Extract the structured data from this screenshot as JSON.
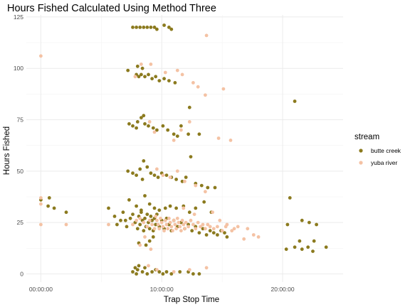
{
  "chart_data": {
    "type": "scatter",
    "title": "Hours Fished Calculated Using Method Three",
    "xlabel": "Trap Stop Time",
    "ylabel": "Hours Fished",
    "x_unit": "hours of day",
    "xlim": [
      -1.2,
      25
    ],
    "ylim": [
      -4,
      126
    ],
    "x_ticks": [
      {
        "value": 0,
        "label": "00:00:00"
      },
      {
        "value": 10,
        "label": "10:00:00"
      },
      {
        "value": 20,
        "label": "20:00:00"
      }
    ],
    "y_ticks": [
      {
        "value": 0,
        "label": "0"
      },
      {
        "value": 25,
        "label": "25"
      },
      {
        "value": 50,
        "label": "50"
      },
      {
        "value": 75,
        "label": "75"
      },
      {
        "value": 100,
        "label": "100"
      },
      {
        "value": 125,
        "label": "125"
      }
    ],
    "grid": true,
    "legend": {
      "title": "stream",
      "position": "right"
    },
    "series": [
      {
        "name": "butte creek",
        "color": "#8B7A1E",
        "points": [
          [
            0.7,
            37
          ],
          [
            0.6,
            33
          ],
          [
            1.1,
            32
          ],
          [
            2.1,
            30
          ],
          [
            0,
            36
          ],
          [
            7.6,
            120
          ],
          [
            7.9,
            120
          ],
          [
            8.2,
            120
          ],
          [
            8.5,
            120
          ],
          [
            8.8,
            120
          ],
          [
            9.1,
            120
          ],
          [
            9.4,
            120
          ],
          [
            9.6,
            119
          ],
          [
            10.2,
            121
          ],
          [
            10.6,
            120
          ],
          [
            10.8,
            119
          ],
          [
            7.2,
            99
          ],
          [
            7.9,
            97
          ],
          [
            8.1,
            96
          ],
          [
            8.3,
            97
          ],
          [
            8.6,
            96
          ],
          [
            8.9,
            97
          ],
          [
            9.2,
            95
          ],
          [
            9.5,
            96
          ],
          [
            9.8,
            94
          ],
          [
            10.2,
            95
          ],
          [
            10.6,
            94
          ],
          [
            11.1,
            93
          ],
          [
            8.0,
            101
          ],
          [
            8.4,
            100
          ],
          [
            7.3,
            73
          ],
          [
            7.6,
            72
          ],
          [
            8.0,
            74
          ],
          [
            8.3,
            76
          ],
          [
            8.5,
            77
          ],
          [
            8.9,
            72
          ],
          [
            9.3,
            71
          ],
          [
            9.6,
            70
          ],
          [
            10.1,
            72
          ],
          [
            10.5,
            70
          ],
          [
            11.0,
            68
          ],
          [
            11.3,
            67
          ],
          [
            11.6,
            72
          ],
          [
            12.2,
            68
          ],
          [
            12.3,
            81
          ],
          [
            13.1,
            68
          ],
          [
            7.9,
            71
          ],
          [
            8.6,
            73
          ],
          [
            7.2,
            50
          ],
          [
            7.6,
            49
          ],
          [
            7.9,
            48
          ],
          [
            8.2,
            51
          ],
          [
            8.5,
            55
          ],
          [
            8.8,
            52
          ],
          [
            9.1,
            49
          ],
          [
            9.4,
            48
          ],
          [
            9.7,
            47
          ],
          [
            10.0,
            49
          ],
          [
            10.4,
            48
          ],
          [
            10.8,
            47
          ],
          [
            11.2,
            46
          ],
          [
            11.7,
            45
          ],
          [
            12.0,
            47
          ],
          [
            12.4,
            57
          ],
          [
            12.8,
            44
          ],
          [
            13.3,
            43
          ],
          [
            13.8,
            42
          ],
          [
            14.4,
            42
          ],
          [
            8.4,
            46
          ],
          [
            7.3,
            36
          ],
          [
            7.9,
            33
          ],
          [
            8.3,
            31
          ],
          [
            8.6,
            38
          ],
          [
            9.0,
            34
          ],
          [
            9.4,
            32
          ],
          [
            9.8,
            31
          ],
          [
            10.3,
            32
          ],
          [
            10.7,
            33
          ],
          [
            11.2,
            32
          ],
          [
            11.8,
            33
          ],
          [
            12.3,
            30
          ],
          [
            12.8,
            32
          ],
          [
            13.5,
            35
          ],
          [
            14.1,
            30
          ],
          [
            5.6,
            32
          ],
          [
            6.1,
            28
          ],
          [
            6.8,
            30
          ],
          [
            7.4,
            27
          ],
          [
            7.6,
            29
          ],
          [
            7.8,
            25
          ],
          [
            8.0,
            22
          ],
          [
            8.1,
            28
          ],
          [
            8.2,
            24
          ],
          [
            8.3,
            30
          ],
          [
            8.4,
            26
          ],
          [
            8.5,
            21
          ],
          [
            8.6,
            27
          ],
          [
            8.7,
            23
          ],
          [
            8.8,
            29
          ],
          [
            8.9,
            25
          ],
          [
            9.0,
            22
          ],
          [
            9.1,
            28
          ],
          [
            9.2,
            26
          ],
          [
            9.3,
            21
          ],
          [
            9.4,
            27
          ],
          [
            9.5,
            24
          ],
          [
            9.6,
            29
          ],
          [
            9.8,
            23
          ],
          [
            10.0,
            26
          ],
          [
            10.2,
            22
          ],
          [
            10.4,
            27
          ],
          [
            10.6,
            24
          ],
          [
            10.8,
            21
          ],
          [
            11.0,
            26
          ],
          [
            11.3,
            23
          ],
          [
            11.6,
            25
          ],
          [
            11.9,
            22
          ],
          [
            12.2,
            24
          ],
          [
            12.5,
            21
          ],
          [
            12.8,
            23
          ],
          [
            13.1,
            20
          ],
          [
            13.4,
            22
          ],
          [
            13.7,
            19
          ],
          [
            14.0,
            21
          ],
          [
            14.3,
            20
          ],
          [
            14.6,
            19
          ],
          [
            14.9,
            21
          ],
          [
            15.2,
            20
          ],
          [
            15.4,
            18
          ],
          [
            6.3,
            24
          ],
          [
            6.6,
            26
          ],
          [
            7.1,
            23
          ],
          [
            7.0,
            26
          ],
          [
            20.6,
            37
          ],
          [
            21.6,
            26
          ],
          [
            22.2,
            25
          ],
          [
            22.8,
            24
          ],
          [
            20.4,
            24
          ],
          [
            21.4,
            16
          ],
          [
            22.6,
            16
          ],
          [
            20.3,
            12
          ],
          [
            21.0,
            13
          ],
          [
            21.6,
            12
          ],
          [
            22.1,
            13
          ],
          [
            22.5,
            11
          ],
          [
            23.6,
            13
          ],
          [
            8.1,
            15
          ],
          [
            8.7,
            14
          ],
          [
            9.3,
            18
          ],
          [
            9.0,
            16
          ],
          [
            7.6,
            1
          ],
          [
            7.8,
            3
          ],
          [
            7.9,
            0
          ],
          [
            8.0,
            2
          ],
          [
            8.1,
            4
          ],
          [
            8.4,
            1
          ],
          [
            8.8,
            0
          ],
          [
            9.2,
            1
          ],
          [
            9.5,
            2
          ],
          [
            9.8,
            1
          ],
          [
            10.1,
            0
          ],
          [
            10.4,
            1
          ],
          [
            10.8,
            0
          ],
          [
            11.5,
            1
          ],
          [
            12.2,
            1
          ],
          [
            12.6,
            0
          ],
          [
            13.1,
            0
          ],
          [
            8.6,
            3
          ],
          [
            21.0,
            84
          ]
        ]
      },
      {
        "name": "yuba river",
        "color": "#F4C2A4",
        "points": [
          [
            0,
            106
          ],
          [
            0,
            37
          ],
          [
            0,
            34
          ],
          [
            0,
            24
          ],
          [
            2.1,
            24
          ],
          [
            5.6,
            24
          ],
          [
            7.8,
            96
          ],
          [
            8.3,
            102
          ],
          [
            9.1,
            102
          ],
          [
            10.3,
            98
          ],
          [
            11.3,
            99
          ],
          [
            11.7,
            97
          ],
          [
            12.6,
            93
          ],
          [
            13.0,
            91
          ],
          [
            13.6,
            87
          ],
          [
            15.1,
            90
          ],
          [
            13.7,
            116
          ],
          [
            9.4,
            69
          ],
          [
            11.0,
            65
          ],
          [
            11.6,
            70
          ],
          [
            12.3,
            74
          ],
          [
            14.7,
            66
          ],
          [
            15.7,
            65
          ],
          [
            9.0,
            74
          ],
          [
            10.1,
            48
          ],
          [
            11.3,
            50
          ],
          [
            11.9,
            45
          ],
          [
            12.8,
            43
          ],
          [
            13.6,
            40
          ],
          [
            9.6,
            51
          ],
          [
            10.7,
            47
          ],
          [
            11.8,
            32
          ],
          [
            12.7,
            29
          ],
          [
            14.2,
            30
          ],
          [
            16.3,
            23
          ],
          [
            16.8,
            17
          ],
          [
            17.1,
            22
          ],
          [
            17.6,
            19
          ],
          [
            18.0,
            18
          ],
          [
            14.8,
            26
          ],
          [
            15.4,
            24
          ],
          [
            16.0,
            22
          ],
          [
            8.2,
            27
          ],
          [
            8.5,
            25
          ],
          [
            8.8,
            23
          ],
          [
            9.0,
            26
          ],
          [
            9.2,
            24
          ],
          [
            9.4,
            22
          ],
          [
            9.5,
            28
          ],
          [
            9.6,
            26
          ],
          [
            9.7,
            24
          ],
          [
            9.8,
            22
          ],
          [
            9.9,
            27
          ],
          [
            10.0,
            25
          ],
          [
            10.1,
            23
          ],
          [
            10.2,
            21
          ],
          [
            10.3,
            26
          ],
          [
            10.4,
            24
          ],
          [
            10.5,
            22
          ],
          [
            10.6,
            27
          ],
          [
            10.7,
            25
          ],
          [
            10.8,
            23
          ],
          [
            10.9,
            21
          ],
          [
            11.0,
            26
          ],
          [
            11.1,
            24
          ],
          [
            11.2,
            22
          ],
          [
            11.3,
            27
          ],
          [
            11.4,
            25
          ],
          [
            11.5,
            23
          ],
          [
            11.6,
            21
          ],
          [
            11.7,
            26
          ],
          [
            11.8,
            24
          ],
          [
            11.9,
            22
          ],
          [
            12.0,
            25
          ],
          [
            12.2,
            23
          ],
          [
            12.4,
            26
          ],
          [
            12.6,
            24
          ],
          [
            12.8,
            22
          ],
          [
            13.0,
            25
          ],
          [
            13.2,
            23
          ],
          [
            13.4,
            24
          ],
          [
            13.6,
            22
          ],
          [
            13.8,
            24
          ],
          [
            14.0,
            23
          ],
          [
            14.3,
            22
          ],
          [
            14.6,
            23
          ],
          [
            15.0,
            21
          ],
          [
            15.3,
            23
          ],
          [
            15.8,
            21
          ],
          [
            7.6,
            24
          ],
          [
            7.9,
            26
          ],
          [
            8.6,
            18
          ],
          [
            8.2,
            14
          ],
          [
            9.1,
            12
          ],
          [
            13.7,
            3
          ],
          [
            8.9,
            4
          ],
          [
            9.6,
            2
          ],
          [
            11.0,
            1
          ],
          [
            12.3,
            2
          ]
        ]
      }
    ]
  }
}
